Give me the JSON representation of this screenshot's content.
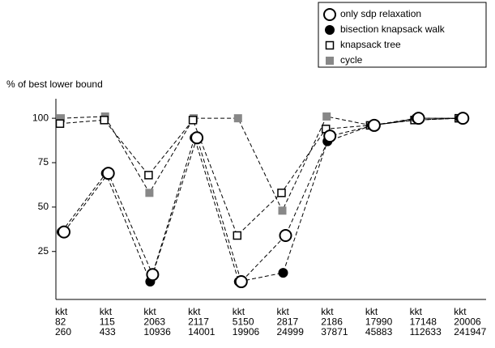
{
  "chart_data": {
    "type": "line",
    "y_label": "% of best lower bound",
    "categories": [
      [
        "kkt",
        "82",
        "260"
      ],
      [
        "kkt",
        "115",
        "433"
      ],
      [
        "kkt",
        "2063",
        "10936"
      ],
      [
        "kkt",
        "2117",
        "14001"
      ],
      [
        "kkt",
        "5150",
        "19906"
      ],
      [
        "kkt",
        "2817",
        "24999"
      ],
      [
        "kkt",
        "2186",
        "37871"
      ],
      [
        "kkt",
        "17990",
        "45883"
      ],
      [
        "kkt",
        "17148",
        "112633"
      ],
      [
        "kkt",
        "20006",
        "241947"
      ]
    ],
    "series": [
      {
        "name": "only sdp relaxation",
        "marker": "open-circle",
        "color": "#000000",
        "values": [
          36,
          69,
          12,
          89,
          8,
          34,
          90,
          96,
          100,
          100
        ]
      },
      {
        "name": "bisection knapsack walk",
        "marker": "filled-circle",
        "color": "#000000",
        "values": [
          36,
          69,
          8,
          89,
          8,
          13,
          87,
          96,
          100,
          100
        ]
      },
      {
        "name": "knapsack tree",
        "marker": "open-square",
        "color": "#000000",
        "values": [
          97,
          99,
          68,
          99,
          34,
          58,
          94,
          96,
          99,
          100
        ]
      },
      {
        "name": "cycle",
        "marker": "filled-square",
        "color": "#888888",
        "values": [
          100,
          101,
          58,
          100,
          100,
          48,
          101,
          96,
          99,
          100
        ]
      }
    ],
    "ylim": [
      -2,
      111
    ],
    "yticks": [
      25,
      50,
      75,
      100
    ],
    "grid": false,
    "legend": "top-right"
  }
}
